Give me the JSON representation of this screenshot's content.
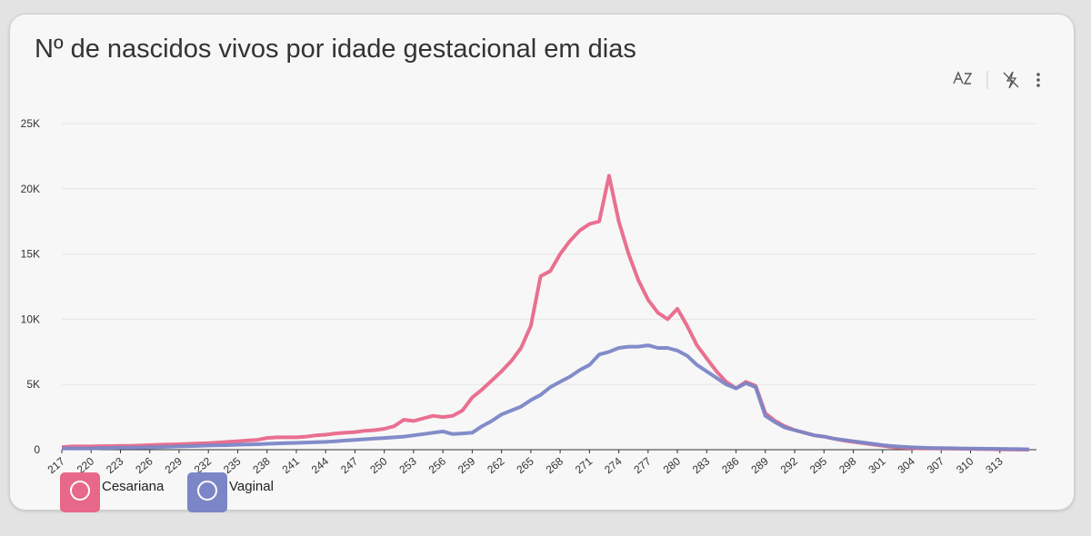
{
  "chart_data": {
    "type": "line",
    "title": "Nº de nascidos vivos por idade gestacional em dias",
    "x": [
      217,
      218,
      219,
      220,
      221,
      222,
      223,
      224,
      225,
      226,
      227,
      228,
      229,
      230,
      231,
      232,
      233,
      234,
      235,
      236,
      237,
      238,
      239,
      240,
      241,
      242,
      243,
      244,
      245,
      246,
      247,
      248,
      249,
      250,
      251,
      252,
      253,
      254,
      255,
      256,
      257,
      258,
      259,
      260,
      261,
      262,
      263,
      264,
      265,
      266,
      267,
      268,
      269,
      270,
      271,
      272,
      273,
      274,
      275,
      276,
      277,
      278,
      279,
      280,
      281,
      282,
      283,
      284,
      285,
      286,
      287,
      288,
      289,
      290,
      291,
      292,
      293,
      294,
      295,
      296,
      297,
      298,
      299,
      300,
      301,
      302,
      303,
      304,
      305,
      306,
      307,
      308,
      309,
      310,
      311,
      312,
      313,
      314,
      315,
      316
    ],
    "series": [
      {
        "name": "Cesariana",
        "color": "#e8688a",
        "values": [
          200,
          250,
          250,
          250,
          270,
          280,
          300,
          300,
          320,
          350,
          380,
          400,
          420,
          450,
          480,
          500,
          550,
          600,
          650,
          700,
          750,
          900,
          950,
          950,
          950,
          1000,
          1100,
          1150,
          1250,
          1300,
          1350,
          1450,
          1500,
          1600,
          1800,
          2300,
          2200,
          2400,
          2600,
          2500,
          2600,
          3000,
          4000,
          4600,
          5300,
          6000,
          6800,
          7800,
          9500,
          13300,
          13700,
          15000,
          16000,
          16800,
          17300,
          17500,
          21000,
          17500,
          15000,
          13000,
          11500,
          10500,
          10000,
          10800,
          9500,
          8000,
          7000,
          6000,
          5200,
          4700,
          5200,
          4900,
          2800,
          2200,
          1800,
          1500,
          1300,
          1100,
          1000,
          850,
          700,
          600,
          500,
          400,
          300,
          200,
          150,
          120,
          100,
          100,
          90,
          80,
          70,
          60,
          50,
          40,
          30,
          20,
          10,
          0
        ]
      },
      {
        "name": "Vaginal",
        "color": "#7b86c6",
        "values": [
          100,
          100,
          100,
          100,
          120,
          130,
          150,
          150,
          170,
          180,
          200,
          220,
          250,
          270,
          300,
          320,
          340,
          350,
          380,
          400,
          420,
          450,
          480,
          500,
          520,
          550,
          580,
          600,
          650,
          700,
          750,
          800,
          850,
          900,
          950,
          1000,
          1100,
          1200,
          1300,
          1400,
          1200,
          1250,
          1300,
          1800,
          2200,
          2700,
          3000,
          3300,
          3800,
          4200,
          4800,
          5200,
          5600,
          6100,
          6500,
          7300,
          7500,
          7800,
          7900,
          7900,
          8000,
          7800,
          7800,
          7600,
          7200,
          6500,
          6000,
          5500,
          5000,
          4700,
          5100,
          4800,
          2600,
          2100,
          1700,
          1500,
          1300,
          1100,
          1000,
          850,
          750,
          650,
          550,
          450,
          350,
          280,
          220,
          180,
          150,
          130,
          120,
          110,
          100,
          90,
          80,
          70,
          60,
          50,
          40,
          30
        ]
      }
    ],
    "xlim": [
      217,
      316
    ],
    "xticks": [
      217,
      220,
      223,
      226,
      229,
      232,
      235,
      238,
      241,
      244,
      247,
      250,
      253,
      256,
      259,
      262,
      265,
      268,
      271,
      274,
      277,
      280,
      283,
      286,
      289,
      292,
      295,
      298,
      301,
      304,
      307,
      310,
      313
    ],
    "ylim": [
      0,
      25000
    ],
    "yticks": [
      0,
      {
        "value": 5000,
        "label": "5K"
      },
      {
        "value": 10000,
        "label": "10K"
      },
      {
        "value": 15000,
        "label": "15K"
      },
      {
        "value": 20000,
        "label": "20K"
      },
      {
        "value": 25000,
        "label": "25K"
      }
    ],
    "grid": true
  }
}
